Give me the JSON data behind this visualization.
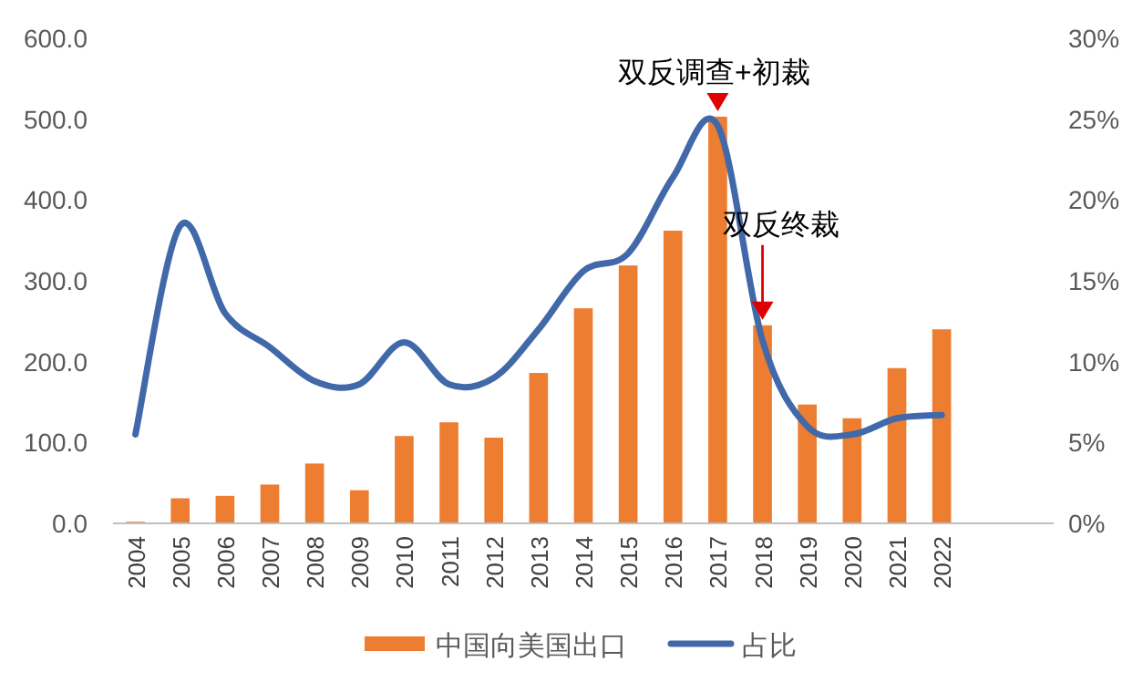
{
  "chart_data": {
    "type": "bar",
    "categories": [
      "2004",
      "2005",
      "2006",
      "2007",
      "2008",
      "2009",
      "2010",
      "2011",
      "2012",
      "2013",
      "2014",
      "2015",
      "2016",
      "2017",
      "2018",
      "2019",
      "2020",
      "2021",
      "2022",
      null,
      null
    ],
    "series": [
      {
        "name": "中国向美国出口",
        "color": "#ed7d31",
        "values": [
          2,
          31,
          34,
          48,
          74,
          41,
          108,
          125,
          106,
          186,
          266,
          319,
          362,
          503,
          245,
          147,
          130,
          192,
          240,
          null,
          null
        ]
      },
      {
        "name": "占比",
        "type": "line",
        "axis": "y2",
        "color": "#4169aa",
        "values": [
          5.5,
          18.4,
          13.0,
          10.9,
          8.8,
          8.6,
          11.2,
          8.6,
          9.0,
          12.0,
          15.6,
          16.7,
          21.4,
          24.6,
          11.3,
          6.0,
          5.5,
          6.5,
          6.7,
          null,
          null
        ]
      }
    ],
    "ylim": [
      0,
      600
    ],
    "yticks": [
      {
        "value": 0,
        "label": "0.0"
      },
      {
        "value": 100,
        "label": "100.0"
      },
      {
        "value": 200,
        "label": "200.0"
      },
      {
        "value": 300,
        "label": "300.0"
      },
      {
        "value": 400,
        "label": "400.0"
      },
      {
        "value": 500,
        "label": "500.0"
      },
      {
        "value": 600,
        "label": "600.0"
      }
    ],
    "y2lim": [
      0,
      30
    ],
    "y2ticks": [
      {
        "value": 0,
        "label": "0%"
      },
      {
        "value": 5,
        "label": "5%"
      },
      {
        "value": 10,
        "label": "10%"
      },
      {
        "value": 15,
        "label": "15%"
      },
      {
        "value": 20,
        "label": "20%"
      },
      {
        "value": 25,
        "label": "25%"
      },
      {
        "value": 30,
        "label": "30%"
      }
    ],
    "annotations": [
      {
        "text": "双反调查+初裁",
        "x": "2017",
        "y": 503
      },
      {
        "text": "双反终裁",
        "x": "2018",
        "y": 245
      }
    ],
    "grid": false,
    "legend": "bottom"
  }
}
